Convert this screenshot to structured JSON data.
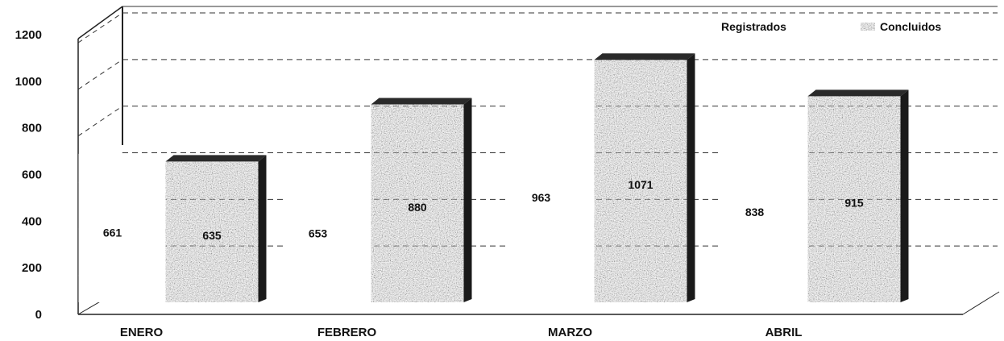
{
  "chart_data": {
    "type": "bar",
    "categories": [
      "ENERO",
      "FEBRERO",
      "MARZO",
      "ABRIL"
    ],
    "series": [
      {
        "name": "Registrados",
        "values": [
          661,
          653,
          963,
          838
        ]
      },
      {
        "name": "Concluidos",
        "values": [
          635,
          880,
          1071,
          915
        ]
      }
    ],
    "ylim": [
      0,
      1200
    ],
    "yticks": [
      0,
      200,
      400,
      600,
      800,
      1000,
      1200
    ],
    "grid": true,
    "legend": "top-right",
    "colors": {
      "registrados": "#ffffff",
      "concluidos": "#8a8a8a",
      "shadow": "#1a1a1a"
    }
  }
}
